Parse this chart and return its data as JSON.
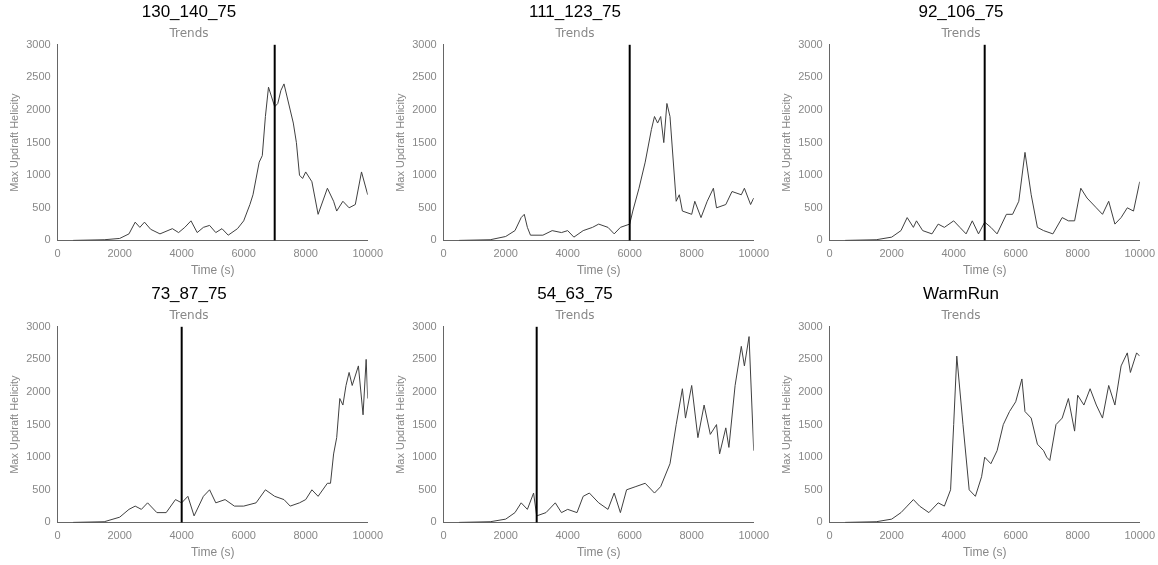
{
  "chart_data": [
    {
      "type": "line",
      "title": "130_140_75",
      "subtitle": "Trends",
      "xlabel": "Time (s)",
      "ylabel": "Max Updraft Helicity",
      "xlim": [
        0,
        10000
      ],
      "xticks": [
        0,
        2000,
        4000,
        6000,
        8000,
        10000
      ],
      "ylim": [
        0,
        3000
      ],
      "yticks": [
        0,
        500,
        1000,
        1500,
        2000,
        2500,
        3000
      ],
      "ref_lines": [
        {
          "axis": "x",
          "value": 7000,
          "color": "#000000"
        }
      ],
      "series": [
        {
          "color": "#404040",
          "x": [
            500,
            1500,
            2000,
            2300,
            2500,
            2650,
            2800,
            3000,
            3300,
            3700,
            3900,
            4100,
            4300,
            4500,
            4700,
            4900,
            5100,
            5300,
            5500,
            5800,
            6000,
            6200,
            6300,
            6500,
            6600,
            6700,
            6800,
            6900,
            7000,
            7100,
            7200,
            7300,
            7400,
            7600,
            7700,
            7800,
            7900,
            8000,
            8200,
            8400,
            8700,
            8900,
            9000,
            9200,
            9400,
            9600,
            9800,
            10000
          ],
          "values": [
            0,
            10,
            30,
            100,
            280,
            200,
            280,
            170,
            100,
            180,
            120,
            200,
            300,
            120,
            200,
            230,
            120,
            180,
            80,
            180,
            300,
            550,
            700,
            1200,
            1300,
            1900,
            2350,
            2200,
            2050,
            2100,
            2300,
            2400,
            2200,
            1800,
            1500,
            1000,
            950,
            1050,
            900,
            400,
            800,
            600,
            450,
            600,
            500,
            550,
            1050,
            700
          ]
        }
      ]
    },
    {
      "type": "line",
      "title": "111_123_75",
      "subtitle": "Trends",
      "xlabel": "Time (s)",
      "ylabel": "Max Updraft Helicity",
      "xlim": [
        0,
        10000
      ],
      "xticks": [
        0,
        2000,
        4000,
        6000,
        8000,
        10000
      ],
      "ylim": [
        0,
        3000
      ],
      "yticks": [
        0,
        500,
        1000,
        1500,
        2000,
        2500,
        3000
      ],
      "ref_lines": [
        {
          "axis": "x",
          "value": 6000,
          "color": "#000000"
        }
      ],
      "series": [
        {
          "color": "#404040",
          "x": [
            500,
            1500,
            2000,
            2300,
            2500,
            2600,
            2700,
            2800,
            3200,
            3500,
            3800,
            4000,
            4200,
            4500,
            4800,
            5000,
            5300,
            5500,
            5700,
            6000,
            6100,
            6300,
            6500,
            6700,
            6800,
            6900,
            7000,
            7100,
            7200,
            7300,
            7500,
            7600,
            7700,
            8000,
            8100,
            8300,
            8500,
            8700,
            8800,
            9100,
            9300,
            9600,
            9700,
            9900,
            10000
          ],
          "values": [
            0,
            10,
            60,
            150,
            350,
            400,
            200,
            80,
            80,
            150,
            120,
            150,
            50,
            150,
            200,
            250,
            200,
            100,
            200,
            250,
            450,
            800,
            1200,
            1700,
            1900,
            1800,
            1900,
            1500,
            2100,
            1900,
            600,
            700,
            450,
            400,
            600,
            350,
            600,
            800,
            500,
            550,
            750,
            700,
            800,
            550,
            650
          ]
        }
      ]
    },
    {
      "type": "line",
      "title": "92_106_75",
      "subtitle": "Trends",
      "xlabel": "Time (s)",
      "ylabel": "Max Updraft Helicity",
      "xlim": [
        0,
        10000
      ],
      "xticks": [
        0,
        2000,
        4000,
        6000,
        8000,
        10000
      ],
      "ylim": [
        0,
        3000
      ],
      "yticks": [
        0,
        500,
        1000,
        1500,
        2000,
        2500,
        3000
      ],
      "ref_lines": [
        {
          "axis": "x",
          "value": 5000,
          "color": "#000000"
        }
      ],
      "series": [
        {
          "color": "#404040",
          "x": [
            500,
            1500,
            2000,
            2300,
            2500,
            2700,
            2800,
            3000,
            3300,
            3500,
            3700,
            4000,
            4200,
            4400,
            4600,
            4800,
            5000,
            5200,
            5400,
            5700,
            5900,
            6100,
            6300,
            6500,
            6700,
            6900,
            7200,
            7500,
            7700,
            7900,
            8100,
            8300,
            8600,
            8800,
            9000,
            9200,
            9400,
            9600,
            9800,
            10000
          ],
          "values": [
            0,
            10,
            50,
            150,
            350,
            200,
            300,
            150,
            100,
            250,
            200,
            300,
            200,
            100,
            300,
            100,
            280,
            200,
            100,
            400,
            400,
            600,
            1350,
            700,
            200,
            150,
            100,
            350,
            300,
            300,
            800,
            650,
            500,
            400,
            600,
            250,
            350,
            500,
            450,
            900
          ]
        }
      ]
    },
    {
      "type": "line",
      "title": "73_87_75",
      "subtitle": "Trends",
      "xlabel": "Time (s)",
      "ylabel": "Max Updraft Helicity",
      "xlim": [
        0,
        10000
      ],
      "xticks": [
        0,
        2000,
        4000,
        6000,
        8000,
        10000
      ],
      "ylim": [
        0,
        3000
      ],
      "yticks": [
        0,
        500,
        1000,
        1500,
        2000,
        2500,
        3000
      ],
      "ref_lines": [
        {
          "axis": "x",
          "value": 4000,
          "color": "#000000"
        }
      ],
      "series": [
        {
          "color": "#404040",
          "x": [
            500,
            1500,
            2000,
            2300,
            2500,
            2700,
            2900,
            3200,
            3500,
            3800,
            4000,
            4200,
            4400,
            4700,
            4900,
            5100,
            5400,
            5700,
            6000,
            6400,
            6700,
            7000,
            7300,
            7500,
            7800,
            8000,
            8200,
            8400,
            8700,
            8800,
            8900,
            9000,
            9100,
            9200,
            9300,
            9400,
            9500,
            9700,
            9850,
            9950,
            10000
          ],
          "values": [
            0,
            10,
            80,
            200,
            250,
            200,
            300,
            150,
            150,
            350,
            300,
            400,
            100,
            400,
            500,
            300,
            350,
            250,
            250,
            300,
            500,
            400,
            350,
            250,
            300,
            350,
            500,
            400,
            600,
            600,
            1050,
            1300,
            1900,
            1800,
            2100,
            2300,
            2100,
            2400,
            1650,
            2500,
            1900
          ]
        }
      ]
    },
    {
      "type": "line",
      "title": "54_63_75",
      "subtitle": "Trends",
      "xlabel": "Time (s)",
      "ylabel": "Max Updraft Helicity",
      "xlim": [
        0,
        10000
      ],
      "xticks": [
        0,
        2000,
        4000,
        6000,
        8000,
        10000
      ],
      "ylim": [
        0,
        3000
      ],
      "yticks": [
        0,
        500,
        1000,
        1500,
        2000,
        2500,
        3000
      ],
      "ref_lines": [
        {
          "axis": "x",
          "value": 3000,
          "color": "#000000"
        }
      ],
      "series": [
        {
          "color": "#404040",
          "x": [
            500,
            1500,
            2000,
            2300,
            2500,
            2700,
            2900,
            3000,
            3300,
            3600,
            3800,
            4000,
            4300,
            4500,
            4700,
            5000,
            5300,
            5500,
            5700,
            5900,
            6200,
            6500,
            6800,
            7000,
            7300,
            7500,
            7700,
            7800,
            8000,
            8200,
            8400,
            8600,
            8800,
            8900,
            9100,
            9200,
            9400,
            9600,
            9700,
            9850,
            10000
          ],
          "values": [
            0,
            10,
            50,
            150,
            300,
            200,
            450,
            100,
            150,
            300,
            150,
            200,
            150,
            400,
            450,
            300,
            200,
            450,
            150,
            500,
            550,
            600,
            450,
            550,
            900,
            1500,
            2050,
            1600,
            2100,
            1300,
            1800,
            1350,
            1500,
            1050,
            1450,
            1150,
            2100,
            2700,
            2400,
            2850,
            1100
          ]
        }
      ]
    },
    {
      "type": "line",
      "title": "WarmRun",
      "subtitle": "Trends",
      "xlabel": "Time (s)",
      "ylabel": "Max Updraft Helicity",
      "xlim": [
        0,
        10000
      ],
      "xticks": [
        0,
        2000,
        4000,
        6000,
        8000,
        10000
      ],
      "ylim": [
        0,
        3000
      ],
      "yticks": [
        0,
        500,
        1000,
        1500,
        2000,
        2500,
        3000
      ],
      "series": [
        {
          "color": "#404040",
          "x": [
            500,
            1500,
            2000,
            2300,
            2500,
            2700,
            2900,
            3200,
            3500,
            3700,
            3900,
            4000,
            4100,
            4300,
            4500,
            4700,
            4900,
            5000,
            5200,
            5400,
            5600,
            5800,
            6000,
            6200,
            6300,
            6500,
            6700,
            6900,
            7000,
            7100,
            7300,
            7500,
            7700,
            7900,
            8000,
            8200,
            8400,
            8600,
            8800,
            9000,
            9200,
            9400,
            9600,
            9700,
            9900,
            10000
          ],
          "values": [
            0,
            10,
            50,
            150,
            250,
            350,
            250,
            150,
            300,
            250,
            500,
            1500,
            2550,
            1500,
            500,
            400,
            700,
            1000,
            900,
            1100,
            1500,
            1700,
            1850,
            2200,
            1700,
            1600,
            1200,
            1100,
            1000,
            950,
            1500,
            1600,
            1900,
            1400,
            1950,
            1800,
            2050,
            1800,
            1600,
            2100,
            1800,
            2400,
            2600,
            2300,
            2600,
            2550
          ]
        }
      ]
    }
  ]
}
